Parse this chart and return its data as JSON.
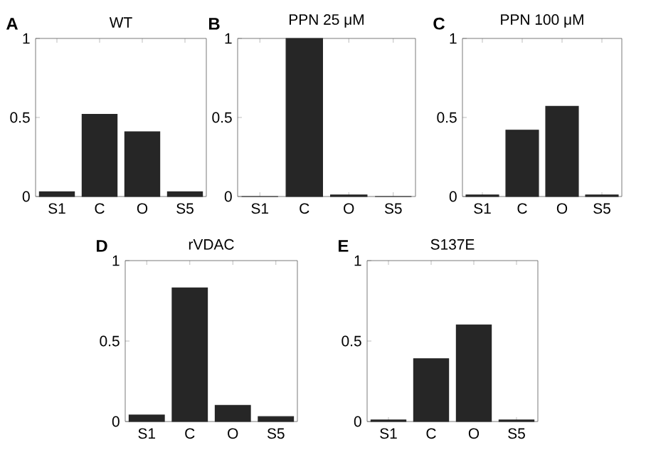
{
  "chart_data": [
    {
      "type": "bar",
      "title": "WT",
      "annotations": [
        "A"
      ],
      "categories": [
        "S1",
        "C",
        "O",
        "S5"
      ],
      "values": [
        0.03,
        0.52,
        0.41,
        0.03
      ],
      "color": "#262626",
      "ylim": [
        0,
        1
      ],
      "yticks": [
        0,
        0.5,
        1
      ]
    },
    {
      "type": "bar",
      "title": "PPN 25 μM",
      "annotations": [
        "B"
      ],
      "categories": [
        "S1",
        "C",
        "O",
        "S5"
      ],
      "values": [
        0,
        1.0,
        0.01,
        0
      ],
      "color": "#262626",
      "ylim": [
        0,
        1
      ],
      "yticks": [
        0,
        0.5,
        1
      ]
    },
    {
      "type": "bar",
      "title": "PPN 100 μM",
      "annotations": [
        "C"
      ],
      "categories": [
        "S1",
        "C",
        "O",
        "S5"
      ],
      "values": [
        0.01,
        0.42,
        0.57,
        0.01
      ],
      "color": "#262626",
      "ylim": [
        0,
        1
      ],
      "yticks": [
        0,
        0.5,
        1
      ]
    },
    {
      "type": "bar",
      "title": "rVDAC",
      "annotations": [
        "D"
      ],
      "categories": [
        "S1",
        "C",
        "O",
        "S5"
      ],
      "values": [
        0.04,
        0.83,
        0.1,
        0.03
      ],
      "color": "#262626",
      "ylim": [
        0,
        1
      ],
      "yticks": [
        0,
        0.5,
        1
      ]
    },
    {
      "type": "bar",
      "title": "S137E",
      "annotations": [
        "E"
      ],
      "categories": [
        "S1",
        "C",
        "O",
        "S5"
      ],
      "values": [
        0.01,
        0.39,
        0.6,
        0.01
      ],
      "color": "#262626",
      "ylim": [
        0,
        1
      ],
      "yticks": [
        0,
        0.5,
        1
      ]
    }
  ]
}
